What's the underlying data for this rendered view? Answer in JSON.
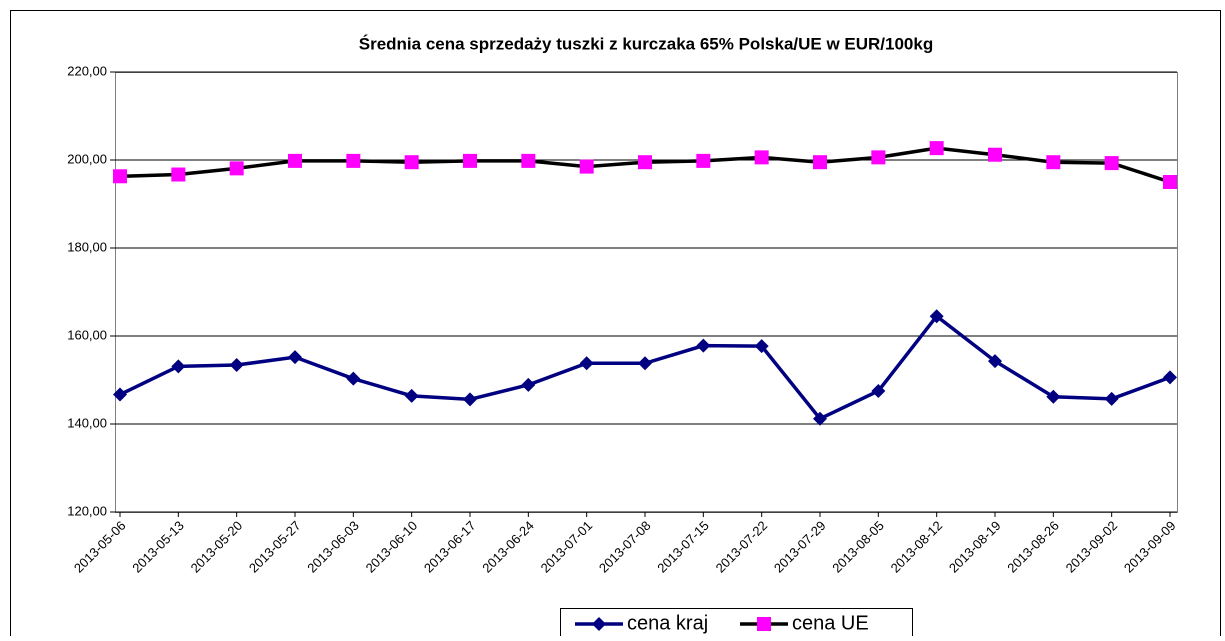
{
  "chart_data": {
    "type": "line",
    "title": "Średnia cena sprzedaży tuszki z kurczaka 65% Polska/UE w EUR/100kg",
    "categories": [
      "2013-05-06",
      "2013-05-13",
      "2013-05-20",
      "2013-05-27",
      "2013-06-03",
      "2013-06-10",
      "2013-06-17",
      "2013-06-24",
      "2013-07-01",
      "2013-07-08",
      "2013-07-15",
      "2013-07-22",
      "2013-07-29",
      "2013-08-05",
      "2013-08-12",
      "2013-08-19",
      "2013-08-26",
      "2013-09-02",
      "2013-09-09"
    ],
    "series": [
      {
        "name": "cena kraj",
        "color": "#000080",
        "marker_color": "#000080",
        "marker": "diamond",
        "values": [
          146.7,
          153.1,
          153.4,
          155.2,
          150.3,
          146.4,
          145.6,
          148.9,
          153.8,
          153.8,
          157.8,
          157.7,
          141.2,
          147.5,
          164.5,
          154.3,
          146.2,
          145.7,
          150.6
        ]
      },
      {
        "name": "cena UE",
        "color": "#000000",
        "marker_color": "#ff00ff",
        "marker": "square",
        "values": [
          196.3,
          196.7,
          198.1,
          199.8,
          199.8,
          199.5,
          199.8,
          199.8,
          198.5,
          199.5,
          199.8,
          200.6,
          199.5,
          200.6,
          202.7,
          201.2,
          199.5,
          199.3,
          195.0
        ]
      }
    ],
    "ylim": [
      120,
      220
    ],
    "yticks": [
      {
        "value": 120,
        "label": "120,00"
      },
      {
        "value": 140,
        "label": "140,00"
      },
      {
        "value": 160,
        "label": "160,00"
      },
      {
        "value": 180,
        "label": "180,00"
      },
      {
        "value": 200,
        "label": "200,00"
      },
      {
        "value": 220,
        "label": "220,00"
      }
    ],
    "grid": true,
    "legend": "bottom"
  }
}
